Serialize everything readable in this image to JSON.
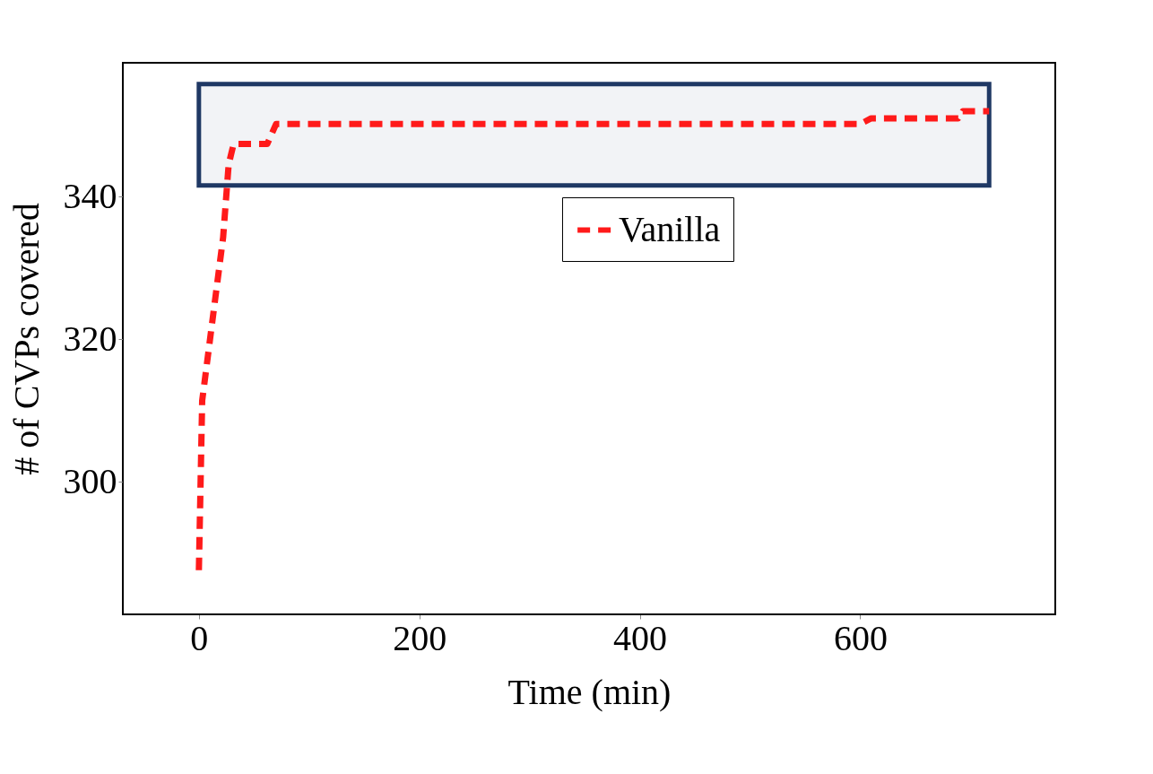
{
  "chart_data": {
    "type": "line",
    "xlabel": "Time (min)",
    "ylabel": "# of CVPs covered",
    "xlim": [
      -69,
      777
    ],
    "ylim": [
      281.4,
      358.8
    ],
    "xticks": [
      0,
      200,
      400,
      600
    ],
    "yticks": [
      300,
      320,
      340
    ],
    "grid": false,
    "legend": "top right",
    "line_style": "dashed",
    "marker": "none",
    "series": [
      {
        "name": "Vanilla",
        "color": "#ff1a1a",
        "x": [
          0,
          3,
          15,
          22,
          27,
          31.5,
          62,
          70,
          600,
          610,
          689,
          693,
          717
        ],
        "values": [
          287.6,
          311.4,
          325.9,
          334.3,
          344.5,
          347.4,
          347.4,
          350.2,
          350.2,
          351,
          351,
          352,
          352
        ]
      }
    ],
    "bands": [
      {
        "axis": "y",
        "from": 341.6,
        "to": 355.8,
        "color": "#1f3864"
      }
    ]
  }
}
